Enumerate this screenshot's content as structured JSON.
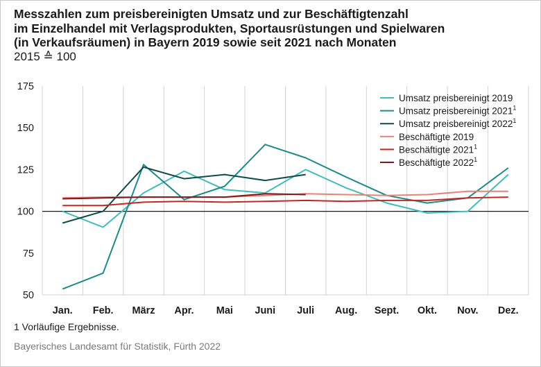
{
  "chart_data": {
    "type": "line",
    "title_lines": [
      "Messzahlen zum preisbereinigten Umsatz und zur Beschäftigtenzahl",
      "im Einzelhandel mit Verlagsprodukten, Sportausrüstungen und Spielwaren",
      "(in Verkaufsräumen) in Bayern 2019 sowie seit 2021 nach Monaten"
    ],
    "subtitle": "2015 ≙ 100",
    "categories": [
      "Jan.",
      "Feb.",
      "März",
      "Apr.",
      "Mai",
      "Juni",
      "Juli",
      "Aug.",
      "Sept.",
      "Okt.",
      "Nov.",
      "Dez."
    ],
    "ylim": [
      50,
      175
    ],
    "yticks": [
      "175",
      "150",
      "125",
      "100",
      "75",
      "50"
    ],
    "reference_line": 100,
    "grid": "vertical",
    "legend_position": "top-right",
    "series": [
      {
        "name": "Umsatz preisbereinigt 2019",
        "sup": "",
        "color": "#3dbdbd",
        "values": [
          100,
          90.5,
          111,
          124,
          113,
          111,
          125,
          114,
          105,
          99,
          100,
          122
        ]
      },
      {
        "name": "Umsatz preisbereinigt 2021",
        "sup": "1",
        "color": "#1a8a8a",
        "values": [
          53.5,
          63,
          128,
          107,
          115,
          140,
          132,
          120.5,
          109.5,
          105,
          108,
          126
        ]
      },
      {
        "name": "Umsatz preisbereinigt 2022",
        "sup": "1",
        "color": "#0f4a4a",
        "values": [
          93,
          100,
          126.5,
          119.5,
          122,
          118.5,
          122,
          null,
          null,
          null,
          null,
          null
        ]
      },
      {
        "name": "Beschäftigte 2019",
        "sup": "",
        "color": "#ec8079",
        "values": [
          108,
          108.5,
          108.5,
          108.5,
          108.5,
          109.5,
          110.5,
          110,
          109.5,
          110,
          112,
          112
        ]
      },
      {
        "name": "Beschäftigte 2021",
        "sup": "1",
        "color": "#c42822",
        "values": [
          103.5,
          103.5,
          105.5,
          106,
          105.5,
          106,
          106.5,
          106,
          106.5,
          106.5,
          108,
          108.5
        ]
      },
      {
        "name": "Beschäftigte 2022",
        "sup": "1",
        "color": "#7a1a1a",
        "values": [
          107.5,
          108,
          108.5,
          108.5,
          108.5,
          110.5,
          110,
          null,
          null,
          null,
          null,
          null
        ]
      }
    ]
  },
  "footnote": "1  Vorläufige Ergebnisse.",
  "source": "Bayerisches Landesamt für Statistik, Fürth 2022"
}
